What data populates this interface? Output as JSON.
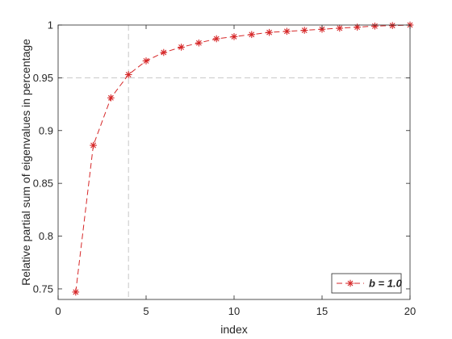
{
  "chart_data": {
    "type": "line",
    "xlabel": "index",
    "ylabel": "Relative partial sum of eigenvalues in percentage",
    "xlim": [
      0,
      20
    ],
    "ylim": [
      0.74,
      1.0
    ],
    "xticks": [
      0,
      5,
      10,
      15,
      20
    ],
    "yticks": [
      0.75,
      0.8,
      0.85,
      0.9,
      0.95,
      1
    ],
    "xtick_labels": [
      "0",
      "5",
      "10",
      "15",
      "20"
    ],
    "ytick_labels": [
      "0.75",
      "0.8",
      "0.85",
      "0.9",
      "0.95",
      "1"
    ],
    "grid": false,
    "legend_position": "bottom-right",
    "reference_lines": {
      "horizontal_y": 0.95,
      "vertical_x": 4,
      "style": "dashed",
      "color": "#c8c8c8"
    },
    "series": [
      {
        "name": "b = 1.0",
        "color": "#d62728",
        "line_style": "dashed",
        "marker": "asterisk",
        "x": [
          1,
          2,
          3,
          4,
          5,
          6,
          7,
          8,
          9,
          10,
          11,
          12,
          13,
          14,
          15,
          16,
          17,
          18,
          19,
          20
        ],
        "values": [
          0.747,
          0.886,
          0.931,
          0.953,
          0.966,
          0.974,
          0.979,
          0.983,
          0.987,
          0.989,
          0.991,
          0.993,
          0.994,
          0.995,
          0.996,
          0.997,
          0.998,
          0.999,
          0.9995,
          1.0
        ]
      }
    ]
  }
}
